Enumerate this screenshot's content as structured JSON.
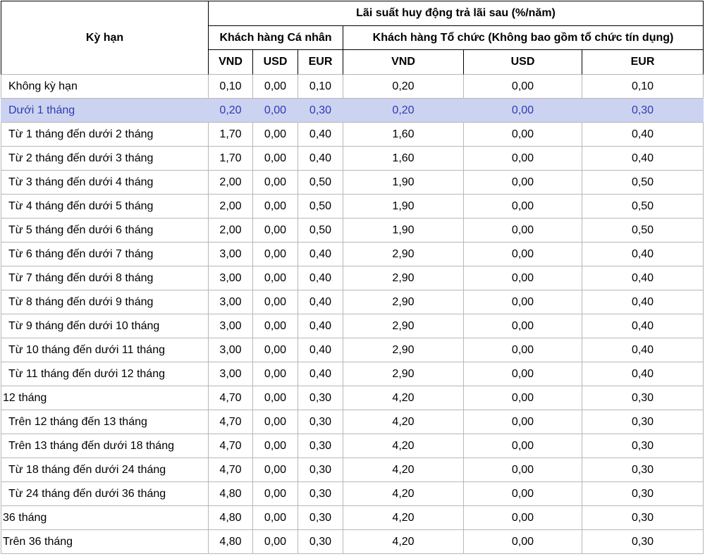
{
  "chart_data": {
    "type": "table",
    "title": "Lãi suất huy động trả lãi sau (%/năm)",
    "row_header_label": "Kỳ hạn",
    "column_groups": [
      "Khách hàng Cá nhân",
      "Khách hàng Tổ chức (Không bao gồm tổ chức tín dụng)"
    ],
    "columns": [
      "VND",
      "USD",
      "EUR",
      "VND",
      "USD",
      "EUR"
    ],
    "highlighted_row": "Dưới 1 tháng",
    "rows": [
      {
        "term": "Không kỳ hạn",
        "values": [
          "0,10",
          "0,00",
          "0,10",
          "0,20",
          "0,00",
          "0,10"
        ],
        "highlight": false,
        "flush": false
      },
      {
        "term": "Dưới 1 tháng",
        "values": [
          "0,20",
          "0,00",
          "0,30",
          "0,20",
          "0,00",
          "0,30"
        ],
        "highlight": true,
        "flush": false
      },
      {
        "term": "Từ 1 tháng đến dưới 2 tháng",
        "values": [
          "1,70",
          "0,00",
          "0,40",
          "1,60",
          "0,00",
          "0,40"
        ],
        "highlight": false,
        "flush": false
      },
      {
        "term": "Từ 2 tháng đến dưới 3 tháng",
        "values": [
          "1,70",
          "0,00",
          "0,40",
          "1,60",
          "0,00",
          "0,40"
        ],
        "highlight": false,
        "flush": false
      },
      {
        "term": "Từ 3 tháng đến dưới 4 tháng",
        "values": [
          "2,00",
          "0,00",
          "0,50",
          "1,90",
          "0,00",
          "0,50"
        ],
        "highlight": false,
        "flush": false
      },
      {
        "term": "Từ 4 tháng đến dưới 5 tháng",
        "values": [
          "2,00",
          "0,00",
          "0,50",
          "1,90",
          "0,00",
          "0,50"
        ],
        "highlight": false,
        "flush": false
      },
      {
        "term": "Từ 5 tháng đến dưới 6 tháng",
        "values": [
          "2,00",
          "0,00",
          "0,50",
          "1,90",
          "0,00",
          "0,50"
        ],
        "highlight": false,
        "flush": false
      },
      {
        "term": "Từ 6 tháng đến dưới 7 tháng",
        "values": [
          "3,00",
          "0,00",
          "0,40",
          "2,90",
          "0,00",
          "0,40"
        ],
        "highlight": false,
        "flush": false
      },
      {
        "term": "Từ 7 tháng đến dưới 8 tháng",
        "values": [
          "3,00",
          "0,00",
          "0,40",
          "2,90",
          "0,00",
          "0,40"
        ],
        "highlight": false,
        "flush": false
      },
      {
        "term": "Từ 8 tháng đến dưới 9 tháng",
        "values": [
          "3,00",
          "0,00",
          "0,40",
          "2,90",
          "0,00",
          "0,40"
        ],
        "highlight": false,
        "flush": false
      },
      {
        "term": "Từ 9 tháng đến dưới 10 tháng",
        "values": [
          "3,00",
          "0,00",
          "0,40",
          "2,90",
          "0,00",
          "0,40"
        ],
        "highlight": false,
        "flush": false
      },
      {
        "term": "Từ 10 tháng đến dưới 11 tháng",
        "values": [
          "3,00",
          "0,00",
          "0,40",
          "2,90",
          "0,00",
          "0,40"
        ],
        "highlight": false,
        "flush": false
      },
      {
        "term": "Từ 11 tháng đến dưới 12 tháng",
        "values": [
          "3,00",
          "0,00",
          "0,40",
          "2,90",
          "0,00",
          "0,40"
        ],
        "highlight": false,
        "flush": false
      },
      {
        "term": "12 tháng",
        "values": [
          "4,70",
          "0,00",
          "0,30",
          "4,20",
          "0,00",
          "0,30"
        ],
        "highlight": false,
        "flush": true
      },
      {
        "term": "Trên 12 tháng đến 13 tháng",
        "values": [
          "4,70",
          "0,00",
          "0,30",
          "4,20",
          "0,00",
          "0,30"
        ],
        "highlight": false,
        "flush": false
      },
      {
        "term": "Trên 13 tháng đến dưới 18 tháng",
        "values": [
          "4,70",
          "0,00",
          "0,30",
          "4,20",
          "0,00",
          "0,30"
        ],
        "highlight": false,
        "flush": false
      },
      {
        "term": "Từ 18 tháng đến dưới 24 tháng",
        "values": [
          "4,70",
          "0,00",
          "0,30",
          "4,20",
          "0,00",
          "0,30"
        ],
        "highlight": false,
        "flush": false
      },
      {
        "term": "Từ 24 tháng đến dưới 36 tháng",
        "values": [
          "4,80",
          "0,00",
          "0,30",
          "4,20",
          "0,00",
          "0,30"
        ],
        "highlight": false,
        "flush": false
      },
      {
        "term": "36 tháng",
        "values": [
          "4,80",
          "0,00",
          "0,30",
          "4,20",
          "0,00",
          "0,30"
        ],
        "highlight": false,
        "flush": true
      },
      {
        "term": "Trên 36 tháng",
        "values": [
          "4,80",
          "0,00",
          "0,30",
          "4,20",
          "0,00",
          "0,30"
        ],
        "highlight": false,
        "flush": true
      }
    ]
  },
  "styles": {
    "header_border": "#000000",
    "grid_border": "#b7b7b7",
    "highlight_bg": "#ccd3f0",
    "highlight_text": "#2e3bb5",
    "text_color": "#000000"
  }
}
